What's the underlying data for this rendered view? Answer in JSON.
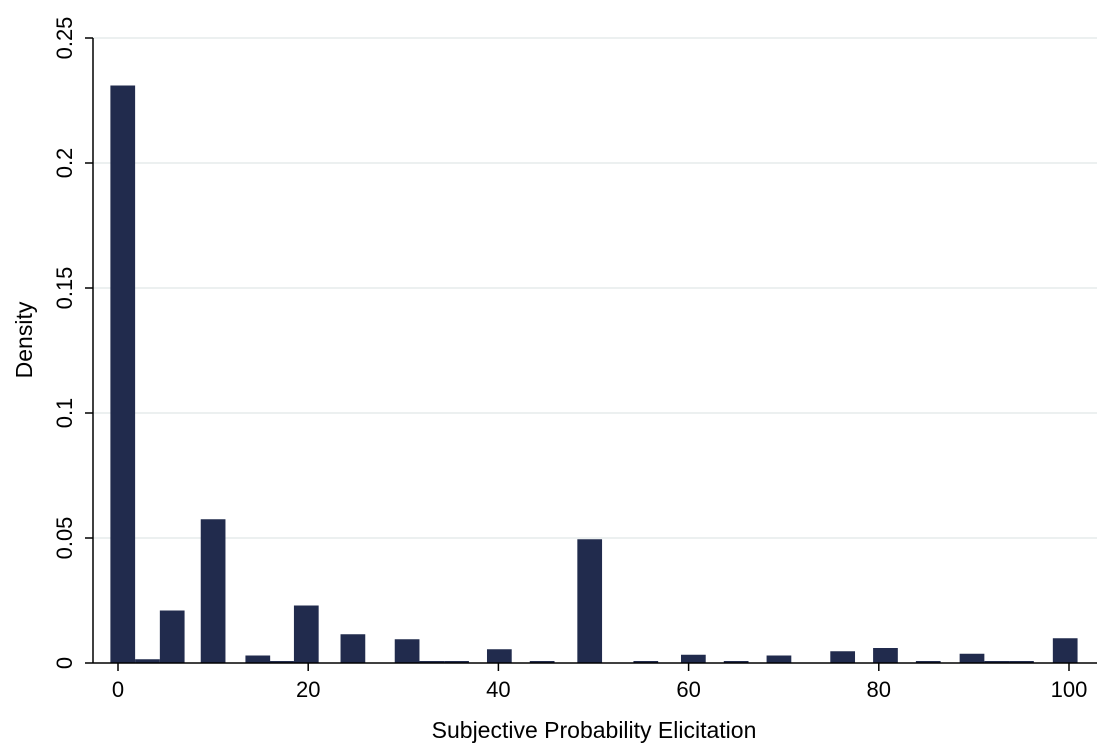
{
  "chart_data": {
    "type": "bar",
    "title": "",
    "xlabel": "Subjective Probability Elicitation",
    "ylabel": "Density",
    "xlim": [
      0,
      100
    ],
    "ylim": [
      0,
      0.25
    ],
    "xticks": [
      0,
      20,
      40,
      60,
      80,
      100
    ],
    "xtick_labels": [
      "0",
      "20",
      "40",
      "60",
      "80",
      "100"
    ],
    "yticks": [
      0,
      0.05,
      0.1,
      0.15,
      0.2,
      0.25
    ],
    "ytick_labels": [
      "0",
      "0.05",
      "0.1",
      "0.15",
      "0.2",
      "0.25"
    ],
    "grid": true,
    "bar_color": "#212b4d",
    "grid_color": "#e6ecec",
    "bin_width": 2.6,
    "bars": [
      {
        "x": 0.5,
        "value": 0.231
      },
      {
        "x": 3.1,
        "value": 0.0015
      },
      {
        "x": 5.7,
        "value": 0.021
      },
      {
        "x": 10.0,
        "value": 0.0575
      },
      {
        "x": 14.7,
        "value": 0.003
      },
      {
        "x": 17.2,
        "value": 0.0008
      },
      {
        "x": 19.8,
        "value": 0.023
      },
      {
        "x": 24.7,
        "value": 0.0115
      },
      {
        "x": 30.4,
        "value": 0.0095
      },
      {
        "x": 33.0,
        "value": 0.0008
      },
      {
        "x": 35.6,
        "value": 0.0008
      },
      {
        "x": 40.1,
        "value": 0.0055
      },
      {
        "x": 44.6,
        "value": 0.0008
      },
      {
        "x": 49.6,
        "value": 0.0495
      },
      {
        "x": 55.5,
        "value": 0.0008
      },
      {
        "x": 60.5,
        "value": 0.0033
      },
      {
        "x": 65.0,
        "value": 0.0008
      },
      {
        "x": 69.5,
        "value": 0.003
      },
      {
        "x": 76.2,
        "value": 0.0047
      },
      {
        "x": 80.7,
        "value": 0.006
      },
      {
        "x": 85.2,
        "value": 0.0008
      },
      {
        "x": 89.8,
        "value": 0.0037
      },
      {
        "x": 92.4,
        "value": 0.0008
      },
      {
        "x": 95.0,
        "value": 0.0008
      },
      {
        "x": 99.6,
        "value": 0.0099
      }
    ]
  }
}
